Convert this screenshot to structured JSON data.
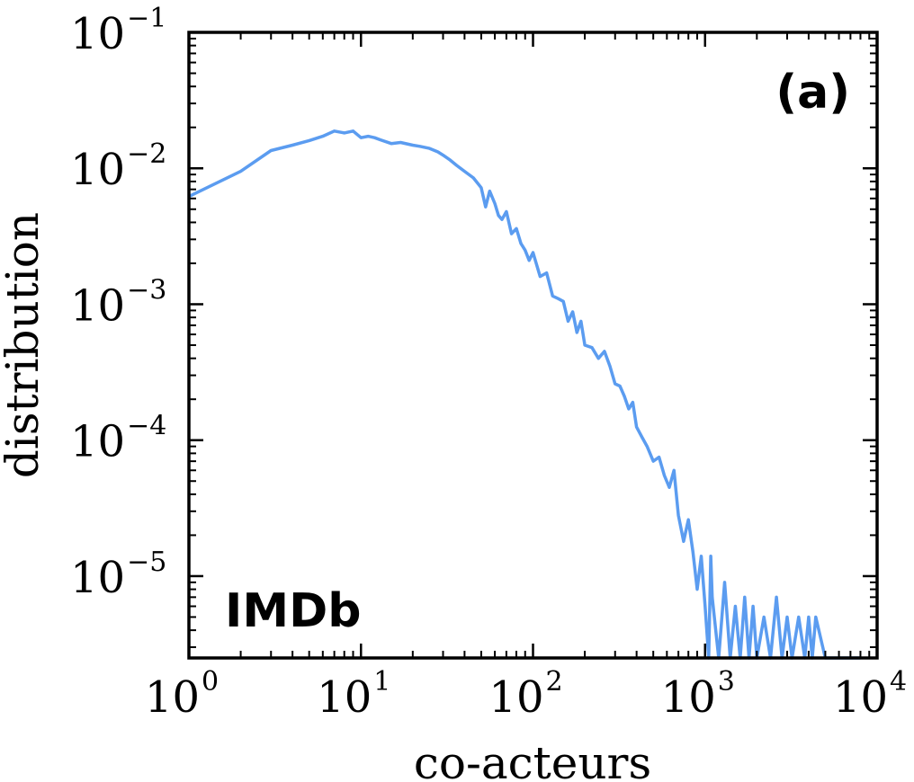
{
  "chart_data": {
    "type": "line",
    "xscale": "log",
    "yscale": "log",
    "xlim": [
      1,
      10000
    ],
    "ylim": [
      2.5e-06,
      0.1
    ],
    "xlabel": "co-acteurs",
    "ylabel": "distribution",
    "x_ticks": [
      {
        "value": 1,
        "base": "10",
        "exp": "0"
      },
      {
        "value": 10,
        "base": "10",
        "exp": "1"
      },
      {
        "value": 100,
        "base": "10",
        "exp": "2"
      },
      {
        "value": 1000,
        "base": "10",
        "exp": "3"
      },
      {
        "value": 10000,
        "base": "10",
        "exp": "4"
      }
    ],
    "y_ticks": [
      {
        "value": 0.1,
        "base": "10",
        "exp": "−1"
      },
      {
        "value": 0.01,
        "base": "10",
        "exp": "−2"
      },
      {
        "value": 0.001,
        "base": "10",
        "exp": "−3"
      },
      {
        "value": 0.0001,
        "base": "10",
        "exp": "−4"
      },
      {
        "value": 1e-05,
        "base": "10",
        "exp": "−5"
      }
    ],
    "annotations": {
      "panel": "(a)",
      "dataset": "IMDb"
    },
    "grid": false,
    "color": "#5b9cf0",
    "series": [
      {
        "x": [
          1,
          2,
          3,
          4,
          5,
          6,
          7,
          8,
          9,
          10,
          11,
          12,
          13,
          15,
          17,
          20,
          22,
          25,
          28,
          30,
          33,
          36,
          40,
          45,
          50,
          53,
          56,
          60,
          63,
          66,
          70,
          75,
          80,
          85,
          90,
          95,
          100,
          110,
          120,
          130,
          140,
          150,
          160,
          170,
          180,
          190,
          200,
          220,
          240,
          260,
          280,
          300,
          320,
          340,
          360,
          380,
          400,
          430,
          460,
          500,
          540,
          580,
          620,
          660,
          700,
          750,
          800,
          850,
          900,
          950,
          1000,
          1050,
          1080,
          1100,
          1200,
          1300,
          1400,
          1500,
          1600,
          1700,
          1800,
          1900,
          2000,
          2200,
          2400,
          2600,
          2800,
          3000,
          3200,
          3500,
          3800,
          4000,
          4200,
          4400,
          5000,
          6000,
          7000,
          8000
        ],
        "y": [
          0.0062,
          0.0095,
          0.0135,
          0.0148,
          0.016,
          0.0172,
          0.0188,
          0.0182,
          0.0188,
          0.0168,
          0.0172,
          0.0168,
          0.0162,
          0.0152,
          0.0155,
          0.0148,
          0.0145,
          0.014,
          0.0132,
          0.0125,
          0.0115,
          0.0105,
          0.0095,
          0.0085,
          0.0072,
          0.0052,
          0.0068,
          0.0055,
          0.0045,
          0.0042,
          0.0048,
          0.0033,
          0.0036,
          0.0028,
          0.0025,
          0.0021,
          0.0024,
          0.0016,
          0.0017,
          0.00115,
          0.0011,
          0.00105,
          0.00075,
          0.00088,
          0.00062,
          0.00075,
          0.0005,
          0.00048,
          0.0004,
          0.00045,
          0.00035,
          0.00026,
          0.00025,
          0.00021,
          0.00017,
          0.00019,
          0.000125,
          0.000105,
          9e-05,
          7e-05,
          7.5e-05,
          5.5e-05,
          4.5e-05,
          6e-05,
          2.8e-05,
          1.8e-05,
          2.6e-05,
          1.5e-05,
          8e-06,
          1.4e-05,
          6e-06,
          2.5e-06,
          1.4e-05,
          7e-06,
          2.5e-06,
          9e-06,
          2.5e-06,
          6e-06,
          2.5e-06,
          7e-06,
          2.5e-06,
          6e-06,
          2.5e-06,
          5e-06,
          2.5e-06,
          7e-06,
          2.5e-06,
          5e-06,
          2.5e-06,
          5e-06,
          2.5e-06,
          5e-06,
          2.5e-06,
          5e-06,
          2.5e-06,
          2.5e-06,
          2.5e-06,
          2.5e-06
        ]
      }
    ]
  }
}
